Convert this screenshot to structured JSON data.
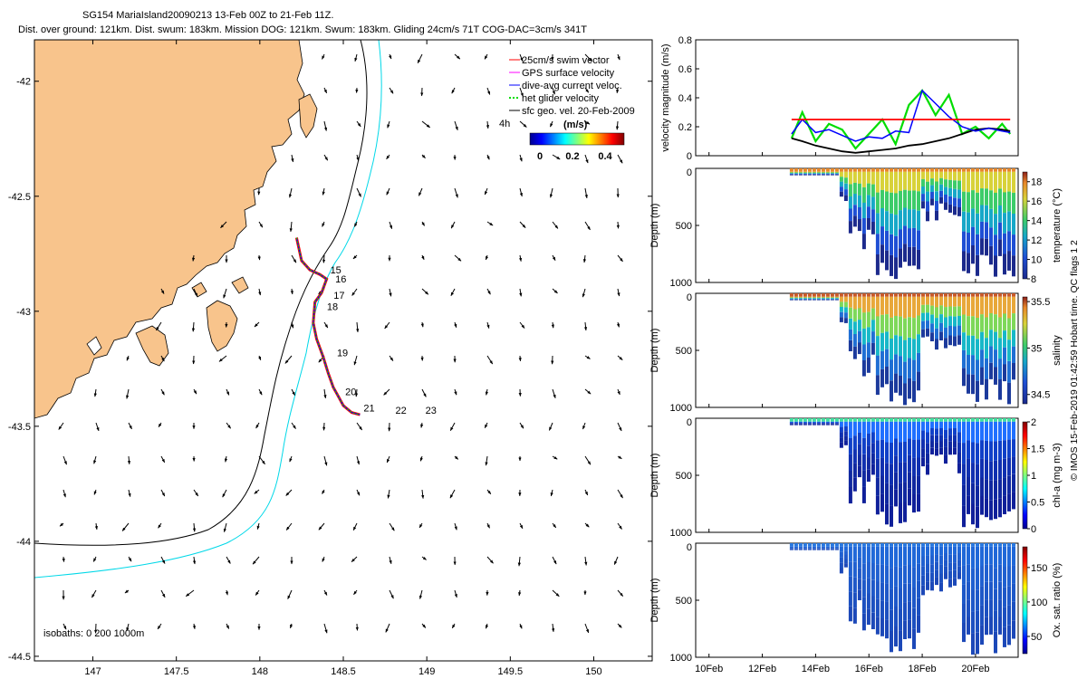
{
  "header": {
    "title_line1": "SG154 MariaIsland20090213 13-Feb 00Z to 21-Feb 11Z.",
    "title_line2": "Dist. over ground: 121km. Dist. swum: 183km. Mission DOG: 121km. Swum: 183km. Gliding 24cm/s 71T COG-DAC=3cm/s 341T"
  },
  "colors": {
    "land": "#f8c48c",
    "track_red": "#ff0000",
    "track_blue": "#0000ff",
    "glider_green": "#00dd00",
    "isobath_200": "#000000",
    "isobath_1000": "#00d8e8",
    "velocity_swim": "#ff0000"
  },
  "map": {
    "legend": [
      {
        "label": "25cm/s swim vector",
        "color": "#ff0000"
      },
      {
        "label": "GPS surface velocity",
        "color": "#ff00ff"
      },
      {
        "label": "dive-avg current veloc.",
        "color": "#0000ff"
      },
      {
        "label": "net glider velocity",
        "color": "#00dd00"
      },
      {
        "label": "sfc geo. vel. 20-Feb-2009",
        "color": "#000000"
      }
    ],
    "time_mark": "4h",
    "colorbar_title": "(m/s)",
    "colorbar_ticks": [
      "0",
      "0.2",
      "0.4"
    ],
    "isobaths_label": "isobaths: 0   200  1000m",
    "day_labels": [
      "15",
      "16",
      "17",
      "18",
      "19",
      "20",
      "21",
      "22",
      "23"
    ],
    "x_ticks": [
      "147",
      "147.5",
      "148",
      "148.5",
      "149",
      "149.5",
      "150"
    ],
    "y_ticks": [
      "-42",
      "-42.5",
      "-43",
      "-43.5",
      "-44",
      "-44.5"
    ]
  },
  "side_panels": {
    "x_ticks": [
      "10Feb",
      "12Feb",
      "14Feb",
      "16Feb",
      "18Feb",
      "20Feb"
    ],
    "velocity": {
      "ylabel": "velocity magnitude (m/s)",
      "y_ticks": [
        "0",
        "0.2",
        "0.4",
        "0.6",
        "0.8"
      ]
    },
    "temperature": {
      "ylabel": "Depth (m)",
      "cbar_label": "temperature (°C)",
      "y_ticks": [
        "0",
        "500",
        "1000"
      ],
      "cbar_ticks": [
        "8",
        "10",
        "12",
        "14",
        "16",
        "18"
      ]
    },
    "salinity": {
      "ylabel": "Depth (m)",
      "cbar_label": "salinity",
      "y_ticks": [
        "0",
        "500",
        "1000"
      ],
      "cbar_ticks": [
        "34.5",
        "35",
        "35.5"
      ]
    },
    "chla": {
      "ylabel": "Depth (m)",
      "cbar_label": "chl-a (mg m-3)",
      "y_ticks": [
        "0",
        "500",
        "1000"
      ],
      "cbar_ticks": [
        "0",
        "0.5",
        "1",
        "1.5",
        "2"
      ]
    },
    "oxygen": {
      "ylabel": "Depth (m)",
      "cbar_label": "Ox. sat. ratio (%)",
      "y_ticks": [
        "0",
        "500",
        "1000"
      ],
      "cbar_ticks": [
        "50",
        "100",
        "150"
      ]
    }
  },
  "footer_vertical": "© IMOS 15-Feb-2019 01:42:59 Hobart time. QC flags 1  2",
  "chart_data": [
    {
      "type": "scatter",
      "title": "SG154 MariaIsland20090213 13-Feb 00Z to 21-Feb 11Z.",
      "xlim": [
        146.65,
        150.35
      ],
      "ylim": [
        -44.52,
        -41.82
      ],
      "glider_track": {
        "lon": [
          148.22,
          148.25,
          148.3,
          148.36,
          148.4,
          148.37,
          148.33,
          148.32,
          148.34,
          148.38,
          148.41,
          148.44,
          148.47,
          148.5,
          148.55,
          148.6
        ],
        "lat": [
          -42.68,
          -42.78,
          -42.82,
          -42.84,
          -42.86,
          -42.92,
          -42.96,
          -43.05,
          -43.12,
          -43.2,
          -43.27,
          -43.33,
          -43.37,
          -43.41,
          -43.44,
          -43.45
        ]
      },
      "day_markers": [
        {
          "label": "15",
          "lon": 148.4,
          "lat": -42.82
        },
        {
          "label": "16",
          "lon": 148.43,
          "lat": -42.86
        },
        {
          "label": "17",
          "lon": 148.42,
          "lat": -42.93
        },
        {
          "label": "18",
          "lon": 148.38,
          "lat": -42.98
        },
        {
          "label": "19",
          "lon": 148.44,
          "lat": -43.18
        },
        {
          "label": "20",
          "lon": 148.49,
          "lat": -43.35
        },
        {
          "label": "21",
          "lon": 148.6,
          "lat": -43.42
        },
        {
          "label": "22",
          "lon": 148.79,
          "lat": -43.43
        },
        {
          "label": "23",
          "lon": 148.97,
          "lat": -43.43
        }
      ]
    },
    {
      "type": "line",
      "ylabel": "velocity magnitude (m/s)",
      "ylim": [
        0,
        0.8
      ],
      "x_days": [
        13.1,
        13.5,
        14.0,
        14.5,
        15.0,
        15.5,
        16.0,
        16.5,
        17.0,
        17.5,
        18.0,
        18.5,
        19.0,
        19.5,
        20.0,
        20.5,
        21.0,
        21.3
      ],
      "series": [
        {
          "name": "25cm/s swim vector",
          "values": [
            0.25,
            0.25,
            0.25,
            0.25,
            0.25,
            0.25,
            0.25,
            0.25,
            0.25,
            0.25,
            0.25,
            0.25,
            0.25,
            0.25,
            0.25,
            0.25,
            0.25,
            0.25
          ]
        },
        {
          "name": "dive-avg current veloc.",
          "values": [
            0.15,
            0.25,
            0.16,
            0.18,
            0.14,
            0.1,
            0.13,
            0.12,
            0.17,
            0.16,
            0.45,
            0.36,
            0.27,
            0.2,
            0.17,
            0.19,
            0.17,
            0.16
          ]
        },
        {
          "name": "net glider velocity",
          "values": [
            0.12,
            0.3,
            0.1,
            0.22,
            0.18,
            0.05,
            0.15,
            0.25,
            0.08,
            0.35,
            0.45,
            0.28,
            0.42,
            0.15,
            0.2,
            0.12,
            0.22,
            0.15
          ]
        },
        {
          "name": "sfc geo. vel. 20-Feb-2009",
          "values": [
            0.12,
            0.1,
            0.07,
            0.05,
            0.03,
            0.02,
            0.03,
            0.04,
            0.05,
            0.07,
            0.08,
            0.1,
            0.12,
            0.15,
            0.18,
            0.19,
            0.18,
            0.17
          ]
        }
      ]
    },
    {
      "type": "heatmap",
      "ylabel": "Depth (m)",
      "ylim": [
        1000,
        0
      ],
      "colorbar": {
        "label": "temperature (°C)",
        "range": [
          8,
          19
        ]
      }
    },
    {
      "type": "heatmap",
      "ylabel": "Depth (m)",
      "ylim": [
        1000,
        0
      ],
      "colorbar": {
        "label": "salinity",
        "range": [
          34.4,
          35.55
        ]
      }
    },
    {
      "type": "heatmap",
      "ylabel": "Depth (m)",
      "ylim": [
        1000,
        0
      ],
      "colorbar": {
        "label": "chl-a (mg m-3)",
        "range": [
          0,
          2
        ]
      }
    },
    {
      "type": "heatmap",
      "ylabel": "Depth (m)",
      "ylim": [
        1000,
        0
      ],
      "colorbar": {
        "label": "Ox. sat. ratio (%)",
        "range": [
          25,
          180
        ]
      }
    }
  ]
}
